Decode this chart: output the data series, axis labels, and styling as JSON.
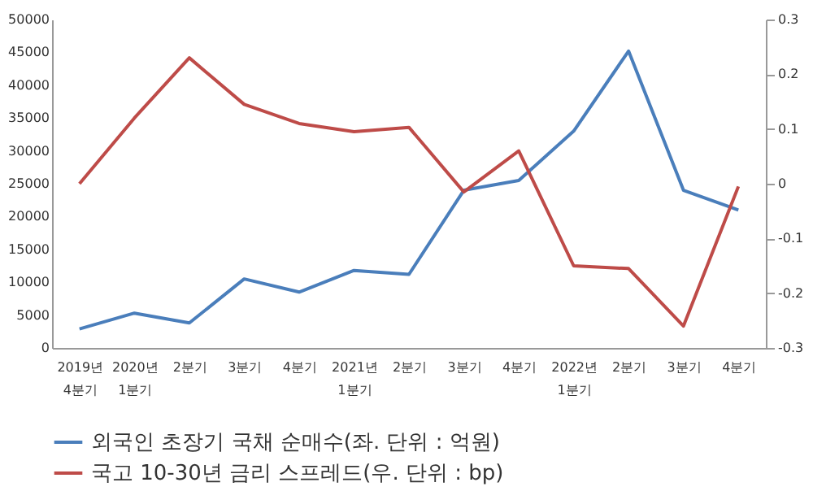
{
  "chart_data": {
    "type": "line",
    "categories": [
      "2019년\n4분기",
      "2020년\n1분기",
      "2분기",
      "3분기",
      "4분기",
      "2021년\n1분기",
      "2분기",
      "3분기",
      "4분기",
      "2022년\n1분기",
      "2분기",
      "3분기",
      "4분기"
    ],
    "series": [
      {
        "name": "외국인 초장기 국채 순매수(좌. 단위 : 억원)",
        "color": "#4a7ebb",
        "values": [
          2900,
          5300,
          3800,
          10500,
          8500,
          11800,
          11200,
          24000,
          25500,
          33000,
          45200,
          24000,
          21000
        ]
      },
      {
        "name": "국고 10-30년 금리 스프레드(우. 단위 : bp)",
        "color": "#be4b48",
        "axis": "y2",
        "values": [
          0.0,
          0.12,
          0.23,
          0.145,
          0.11,
          0.095,
          0.103,
          -0.015,
          0.06,
          -0.15,
          -0.155,
          -0.26,
          -0.005
        ]
      }
    ],
    "ylim": [
      0,
      50000
    ],
    "yticks": [
      0,
      5000,
      10000,
      15000,
      20000,
      25000,
      30000,
      35000,
      40000,
      45000,
      50000
    ],
    "y2lim": [
      -0.3,
      0.3
    ],
    "y2ticks": [
      -0.3,
      -0.2,
      -0.1,
      0,
      0.1,
      0.2,
      0.3
    ],
    "legend": "bottom",
    "grid": false,
    "marker": "none",
    "line_style": "solid"
  }
}
